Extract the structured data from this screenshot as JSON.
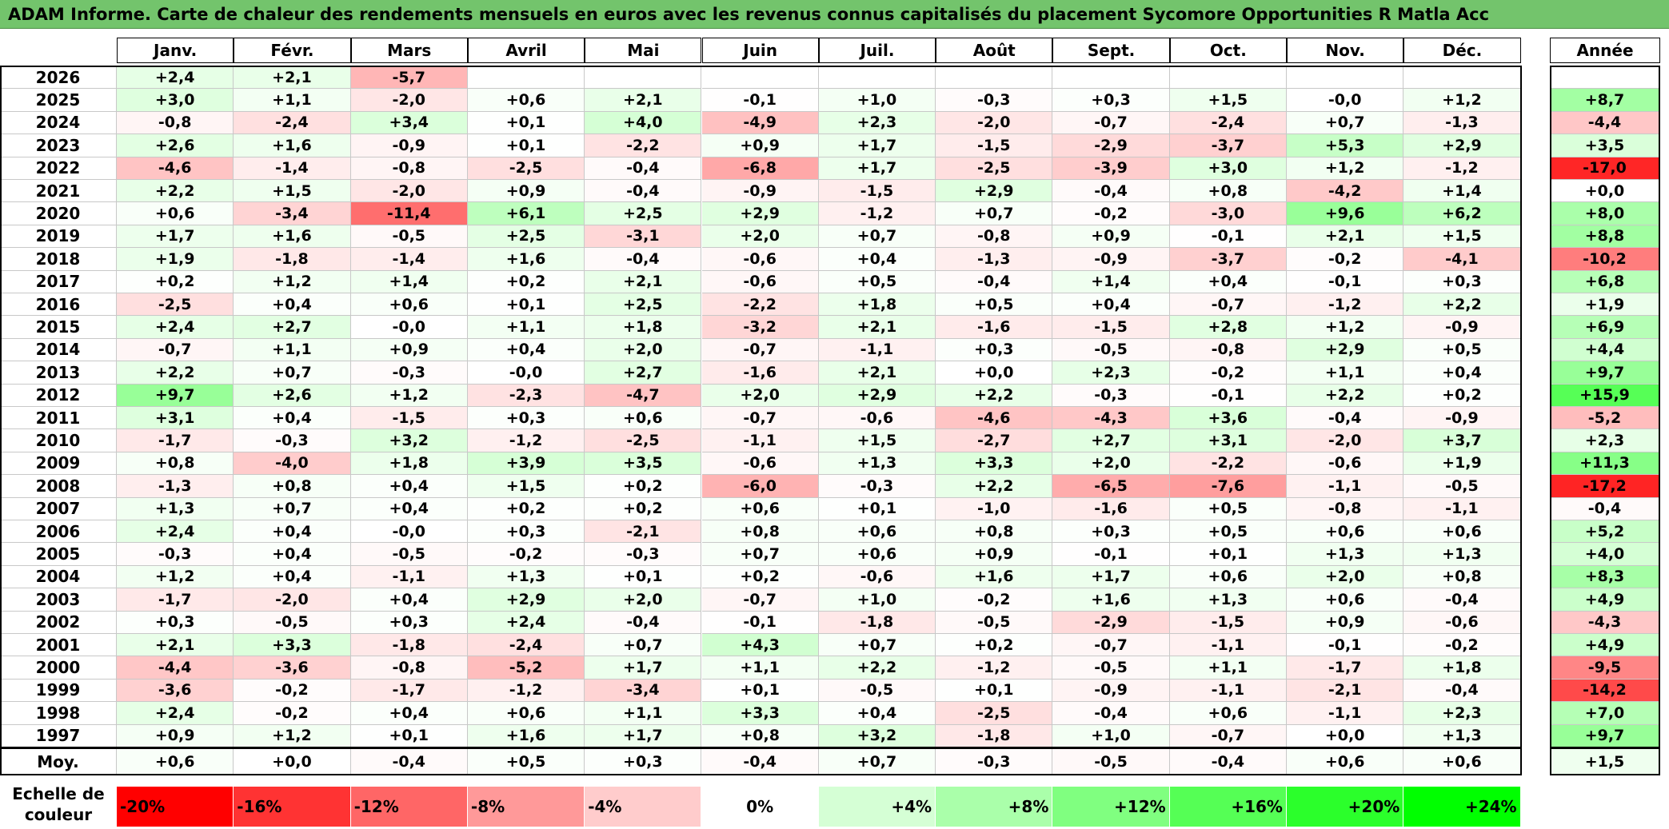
{
  "title": "ADAM Informe. Carte de chaleur des rendements mensuels en euros avec les revenus connus capitalisés du placement Sycomore Opportunities R Matla Acc",
  "chart_data": {
    "type": "heatmap",
    "months": [
      "Janv.",
      "Févr.",
      "Mars",
      "Avril",
      "Mai",
      "Juin",
      "Juil.",
      "Août",
      "Sept.",
      "Oct.",
      "Nov.",
      "Déc."
    ],
    "annual_header": "Année",
    "rows": [
      {
        "year": "2026",
        "values": [
          2.4,
          2.1,
          -5.7,
          null,
          null,
          null,
          null,
          null,
          null,
          null,
          null,
          null
        ],
        "labels": [
          "+2,4",
          "+2,1",
          "-5,7",
          "",
          "",
          "",
          "",
          "",
          "",
          "",
          "",
          ""
        ],
        "annual": null,
        "annual_label": ""
      },
      {
        "year": "2025",
        "values": [
          3.0,
          1.1,
          -2.0,
          0.6,
          2.1,
          -0.1,
          1.0,
          -0.3,
          0.3,
          1.5,
          -0.0,
          1.2
        ],
        "labels": [
          "+3,0",
          "+1,1",
          "-2,0",
          "+0,6",
          "+2,1",
          "-0,1",
          "+1,0",
          "-0,3",
          "+0,3",
          "+1,5",
          "-0,0",
          "+1,2"
        ],
        "annual": 8.7,
        "annual_label": "+8,7"
      },
      {
        "year": "2024",
        "values": [
          -0.8,
          -2.4,
          3.4,
          0.1,
          4.0,
          -4.9,
          2.3,
          -2.0,
          -0.7,
          -2.4,
          0.7,
          -1.3
        ],
        "labels": [
          "-0,8",
          "-2,4",
          "+3,4",
          "+0,1",
          "+4,0",
          "-4,9",
          "+2,3",
          "-2,0",
          "-0,7",
          "-2,4",
          "+0,7",
          "-1,3"
        ],
        "annual": -4.4,
        "annual_label": "-4,4"
      },
      {
        "year": "2023",
        "values": [
          2.6,
          1.6,
          -0.9,
          0.1,
          -2.2,
          0.9,
          1.7,
          -1.5,
          -2.9,
          -3.7,
          5.3,
          2.9
        ],
        "labels": [
          "+2,6",
          "+1,6",
          "-0,9",
          "+0,1",
          "-2,2",
          "+0,9",
          "+1,7",
          "-1,5",
          "-2,9",
          "-3,7",
          "+5,3",
          "+2,9"
        ],
        "annual": 3.5,
        "annual_label": "+3,5"
      },
      {
        "year": "2022",
        "values": [
          -4.6,
          -1.4,
          -0.8,
          -2.5,
          -0.4,
          -6.8,
          1.7,
          -2.5,
          -3.9,
          3.0,
          1.2,
          -1.2
        ],
        "labels": [
          "-4,6",
          "-1,4",
          "-0,8",
          "-2,5",
          "-0,4",
          "-6,8",
          "+1,7",
          "-2,5",
          "-3,9",
          "+3,0",
          "+1,2",
          "-1,2"
        ],
        "annual": -17.0,
        "annual_label": "-17,0"
      },
      {
        "year": "2021",
        "values": [
          2.2,
          1.5,
          -2.0,
          0.9,
          -0.4,
          -0.9,
          -1.5,
          2.9,
          -0.4,
          0.8,
          -4.2,
          1.4
        ],
        "labels": [
          "+2,2",
          "+1,5",
          "-2,0",
          "+0,9",
          "-0,4",
          "-0,9",
          "-1,5",
          "+2,9",
          "-0,4",
          "+0,8",
          "-4,2",
          "+1,4"
        ],
        "annual": 0.0,
        "annual_label": "+0,0"
      },
      {
        "year": "2020",
        "values": [
          0.6,
          -3.4,
          -11.4,
          6.1,
          2.5,
          2.9,
          -1.2,
          0.7,
          -0.2,
          -3.0,
          9.6,
          6.2
        ],
        "labels": [
          "+0,6",
          "-3,4",
          "-11,4",
          "+6,1",
          "+2,5",
          "+2,9",
          "-1,2",
          "+0,7",
          "-0,2",
          "-3,0",
          "+9,6",
          "+6,2"
        ],
        "annual": 8.0,
        "annual_label": "+8,0"
      },
      {
        "year": "2019",
        "values": [
          1.7,
          1.6,
          -0.5,
          2.5,
          -3.1,
          2.0,
          0.7,
          -0.8,
          0.9,
          -0.1,
          2.1,
          1.5
        ],
        "labels": [
          "+1,7",
          "+1,6",
          "-0,5",
          "+2,5",
          "-3,1",
          "+2,0",
          "+0,7",
          "-0,8",
          "+0,9",
          "-0,1",
          "+2,1",
          "+1,5"
        ],
        "annual": 8.8,
        "annual_label": "+8,8"
      },
      {
        "year": "2018",
        "values": [
          1.9,
          -1.8,
          -1.4,
          1.6,
          -0.4,
          -0.6,
          0.4,
          -1.3,
          -0.9,
          -3.7,
          -0.2,
          -4.1
        ],
        "labels": [
          "+1,9",
          "-1,8",
          "-1,4",
          "+1,6",
          "-0,4",
          "-0,6",
          "+0,4",
          "-1,3",
          "-0,9",
          "-3,7",
          "-0,2",
          "-4,1"
        ],
        "annual": -10.2,
        "annual_label": "-10,2"
      },
      {
        "year": "2017",
        "values": [
          0.2,
          1.2,
          1.4,
          0.2,
          2.1,
          -0.6,
          0.5,
          -0.4,
          1.4,
          0.4,
          -0.1,
          0.3
        ],
        "labels": [
          "+0,2",
          "+1,2",
          "+1,4",
          "+0,2",
          "+2,1",
          "-0,6",
          "+0,5",
          "-0,4",
          "+1,4",
          "+0,4",
          "-0,1",
          "+0,3"
        ],
        "annual": 6.8,
        "annual_label": "+6,8"
      },
      {
        "year": "2016",
        "values": [
          -2.5,
          0.4,
          0.6,
          0.1,
          2.5,
          -2.2,
          1.8,
          0.5,
          0.4,
          -0.7,
          -1.2,
          2.2
        ],
        "labels": [
          "-2,5",
          "+0,4",
          "+0,6",
          "+0,1",
          "+2,5",
          "-2,2",
          "+1,8",
          "+0,5",
          "+0,4",
          "-0,7",
          "-1,2",
          "+2,2"
        ],
        "annual": 1.9,
        "annual_label": "+1,9"
      },
      {
        "year": "2015",
        "values": [
          2.4,
          2.7,
          -0.0,
          1.1,
          1.8,
          -3.2,
          2.1,
          -1.6,
          -1.5,
          2.8,
          1.2,
          -0.9
        ],
        "labels": [
          "+2,4",
          "+2,7",
          "-0,0",
          "+1,1",
          "+1,8",
          "-3,2",
          "+2,1",
          "-1,6",
          "-1,5",
          "+2,8",
          "+1,2",
          "-0,9"
        ],
        "annual": 6.9,
        "annual_label": "+6,9"
      },
      {
        "year": "2014",
        "values": [
          -0.7,
          1.1,
          0.9,
          0.4,
          2.0,
          -0.7,
          -1.1,
          0.3,
          -0.5,
          -0.8,
          2.9,
          0.5
        ],
        "labels": [
          "-0,7",
          "+1,1",
          "+0,9",
          "+0,4",
          "+2,0",
          "-0,7",
          "-1,1",
          "+0,3",
          "-0,5",
          "-0,8",
          "+2,9",
          "+0,5"
        ],
        "annual": 4.4,
        "annual_label": "+4,4"
      },
      {
        "year": "2013",
        "values": [
          2.2,
          0.7,
          -0.3,
          -0.0,
          2.7,
          -1.6,
          2.1,
          0.0,
          2.3,
          -0.2,
          1.1,
          0.4
        ],
        "labels": [
          "+2,2",
          "+0,7",
          "-0,3",
          "-0,0",
          "+2,7",
          "-1,6",
          "+2,1",
          "+0,0",
          "+2,3",
          "-0,2",
          "+1,1",
          "+0,4"
        ],
        "annual": 9.7,
        "annual_label": "+9,7"
      },
      {
        "year": "2012",
        "values": [
          9.7,
          2.6,
          1.2,
          -2.3,
          -4.7,
          2.0,
          2.9,
          2.2,
          -0.3,
          -0.1,
          2.2,
          0.2
        ],
        "labels": [
          "+9,7",
          "+2,6",
          "+1,2",
          "-2,3",
          "-4,7",
          "+2,0",
          "+2,9",
          "+2,2",
          "-0,3",
          "-0,1",
          "+2,2",
          "+0,2"
        ],
        "annual": 15.9,
        "annual_label": "+15,9"
      },
      {
        "year": "2011",
        "values": [
          3.1,
          0.4,
          -1.5,
          0.3,
          0.6,
          -0.7,
          -0.6,
          -4.6,
          -4.3,
          3.6,
          -0.4,
          -0.9
        ],
        "labels": [
          "+3,1",
          "+0,4",
          "-1,5",
          "+0,3",
          "+0,6",
          "-0,7",
          "-0,6",
          "-4,6",
          "-4,3",
          "+3,6",
          "-0,4",
          "-0,9"
        ],
        "annual": -5.2,
        "annual_label": "-5,2"
      },
      {
        "year": "2010",
        "values": [
          -1.7,
          -0.3,
          3.2,
          -1.2,
          -2.5,
          -1.1,
          1.5,
          -2.7,
          2.7,
          3.1,
          -2.0,
          3.7
        ],
        "labels": [
          "-1,7",
          "-0,3",
          "+3,2",
          "-1,2",
          "-2,5",
          "-1,1",
          "+1,5",
          "-2,7",
          "+2,7",
          "+3,1",
          "-2,0",
          "+3,7"
        ],
        "annual": 2.3,
        "annual_label": "+2,3"
      },
      {
        "year": "2009",
        "values": [
          0.8,
          -4.0,
          1.8,
          3.9,
          3.5,
          -0.6,
          1.3,
          3.3,
          2.0,
          -2.2,
          -0.6,
          1.9
        ],
        "labels": [
          "+0,8",
          "-4,0",
          "+1,8",
          "+3,9",
          "+3,5",
          "-0,6",
          "+1,3",
          "+3,3",
          "+2,0",
          "-2,2",
          "-0,6",
          "+1,9"
        ],
        "annual": 11.3,
        "annual_label": "+11,3"
      },
      {
        "year": "2008",
        "values": [
          -1.3,
          0.8,
          0.4,
          1.5,
          0.2,
          -6.0,
          -0.3,
          2.2,
          -6.5,
          -7.6,
          -1.1,
          -0.5
        ],
        "labels": [
          "-1,3",
          "+0,8",
          "+0,4",
          "+1,5",
          "+0,2",
          "-6,0",
          "-0,3",
          "+2,2",
          "-6,5",
          "-7,6",
          "-1,1",
          "-0,5"
        ],
        "annual": -17.2,
        "annual_label": "-17,2"
      },
      {
        "year": "2007",
        "values": [
          1.3,
          0.7,
          0.4,
          0.2,
          0.2,
          0.6,
          0.1,
          -1.0,
          -1.6,
          0.5,
          -0.8,
          -1.1
        ],
        "labels": [
          "+1,3",
          "+0,7",
          "+0,4",
          "+0,2",
          "+0,2",
          "+0,6",
          "+0,1",
          "-1,0",
          "-1,6",
          "+0,5",
          "-0,8",
          "-1,1"
        ],
        "annual": -0.4,
        "annual_label": "-0,4"
      },
      {
        "year": "2006",
        "values": [
          2.4,
          0.4,
          -0.0,
          0.3,
          -2.1,
          0.8,
          0.6,
          0.8,
          0.3,
          0.5,
          0.6,
          0.6
        ],
        "labels": [
          "+2,4",
          "+0,4",
          "-0,0",
          "+0,3",
          "-2,1",
          "+0,8",
          "+0,6",
          "+0,8",
          "+0,3",
          "+0,5",
          "+0,6",
          "+0,6"
        ],
        "annual": 5.2,
        "annual_label": "+5,2"
      },
      {
        "year": "2005",
        "values": [
          -0.3,
          0.4,
          -0.5,
          -0.2,
          -0.3,
          0.7,
          0.6,
          0.9,
          -0.1,
          0.1,
          1.3,
          1.3
        ],
        "labels": [
          "-0,3",
          "+0,4",
          "-0,5",
          "-0,2",
          "-0,3",
          "+0,7",
          "+0,6",
          "+0,9",
          "-0,1",
          "+0,1",
          "+1,3",
          "+1,3"
        ],
        "annual": 4.0,
        "annual_label": "+4,0"
      },
      {
        "year": "2004",
        "values": [
          1.2,
          0.4,
          -1.1,
          1.3,
          0.1,
          0.2,
          -0.6,
          1.6,
          1.7,
          0.6,
          2.0,
          0.8
        ],
        "labels": [
          "+1,2",
          "+0,4",
          "-1,1",
          "+1,3",
          "+0,1",
          "+0,2",
          "-0,6",
          "+1,6",
          "+1,7",
          "+0,6",
          "+2,0",
          "+0,8"
        ],
        "annual": 8.3,
        "annual_label": "+8,3"
      },
      {
        "year": "2003",
        "values": [
          -1.7,
          -2.0,
          0.4,
          2.9,
          2.0,
          -0.7,
          1.0,
          -0.2,
          1.6,
          1.3,
          0.6,
          -0.4
        ],
        "labels": [
          "-1,7",
          "-2,0",
          "+0,4",
          "+2,9",
          "+2,0",
          "-0,7",
          "+1,0",
          "-0,2",
          "+1,6",
          "+1,3",
          "+0,6",
          "-0,4"
        ],
        "annual": 4.9,
        "annual_label": "+4,9"
      },
      {
        "year": "2002",
        "values": [
          0.3,
          -0.5,
          0.3,
          2.4,
          -0.4,
          -0.1,
          -1.8,
          -0.5,
          -2.9,
          -1.5,
          0.9,
          -0.6
        ],
        "labels": [
          "+0,3",
          "-0,5",
          "+0,3",
          "+2,4",
          "-0,4",
          "-0,1",
          "-1,8",
          "-0,5",
          "-2,9",
          "-1,5",
          "+0,9",
          "-0,6"
        ],
        "annual": -4.3,
        "annual_label": "-4,3"
      },
      {
        "year": "2001",
        "values": [
          2.1,
          3.3,
          -1.8,
          -2.4,
          0.7,
          4.3,
          0.7,
          0.2,
          -0.7,
          -1.1,
          -0.1,
          -0.2
        ],
        "labels": [
          "+2,1",
          "+3,3",
          "-1,8",
          "-2,4",
          "+0,7",
          "+4,3",
          "+0,7",
          "+0,2",
          "-0,7",
          "-1,1",
          "-0,1",
          "-0,2"
        ],
        "annual": 4.9,
        "annual_label": "+4,9"
      },
      {
        "year": "2000",
        "values": [
          -4.4,
          -3.6,
          -0.8,
          -5.2,
          1.7,
          1.1,
          2.2,
          -1.2,
          -0.5,
          1.1,
          -1.7,
          1.8
        ],
        "labels": [
          "-4,4",
          "-3,6",
          "-0,8",
          "-5,2",
          "+1,7",
          "+1,1",
          "+2,2",
          "-1,2",
          "-0,5",
          "+1,1",
          "-1,7",
          "+1,8"
        ],
        "annual": -9.5,
        "annual_label": "-9,5"
      },
      {
        "year": "1999",
        "values": [
          -3.6,
          -0.2,
          -1.7,
          -1.2,
          -3.4,
          0.1,
          -0.5,
          0.1,
          -0.9,
          -1.1,
          -2.1,
          -0.4
        ],
        "labels": [
          "-3,6",
          "-0,2",
          "-1,7",
          "-1,2",
          "-3,4",
          "+0,1",
          "-0,5",
          "+0,1",
          "-0,9",
          "-1,1",
          "-2,1",
          "-0,4"
        ],
        "annual": -14.2,
        "annual_label": "-14,2"
      },
      {
        "year": "1998",
        "values": [
          2.4,
          -0.2,
          0.4,
          0.6,
          1.1,
          3.3,
          0.4,
          -2.5,
          -0.4,
          0.6,
          -1.1,
          2.3
        ],
        "labels": [
          "+2,4",
          "-0,2",
          "+0,4",
          "+0,6",
          "+1,1",
          "+3,3",
          "+0,4",
          "-2,5",
          "-0,4",
          "+0,6",
          "-1,1",
          "+2,3"
        ],
        "annual": 7.0,
        "annual_label": "+7,0"
      },
      {
        "year": "1997",
        "values": [
          0.9,
          1.2,
          0.1,
          1.6,
          1.7,
          0.8,
          3.2,
          -1.8,
          1.0,
          -0.7,
          0.0,
          1.3
        ],
        "labels": [
          "+0,9",
          "+1,2",
          "+0,1",
          "+1,6",
          "+1,7",
          "+0,8",
          "+3,2",
          "-1,8",
          "+1,0",
          "-0,7",
          "+0,0",
          "+1,3"
        ],
        "annual": 9.7,
        "annual_label": "+9,7"
      }
    ],
    "average": {
      "label": "Moy.",
      "values": [
        0.6,
        0.0,
        -0.4,
        0.5,
        0.3,
        -0.4,
        0.7,
        -0.3,
        -0.5,
        -0.4,
        0.6,
        0.6
      ],
      "labels": [
        "+0,6",
        "+0,0",
        "-0,4",
        "+0,5",
        "+0,3",
        "-0,4",
        "+0,7",
        "-0,3",
        "-0,5",
        "-0,4",
        "+0,6",
        "+0,6"
      ],
      "annual": 1.5,
      "annual_label": "+1,5"
    },
    "color_scale": {
      "label": "Echelle de couleur",
      "stops": [
        {
          "value": -20,
          "label": "-20%"
        },
        {
          "value": -16,
          "label": "-16%"
        },
        {
          "value": -12,
          "label": "-12%"
        },
        {
          "value": -8,
          "label": "-8%"
        },
        {
          "value": -4,
          "label": "-4%"
        },
        {
          "value": 0,
          "label": "0%"
        },
        {
          "value": 4,
          "label": "+4%"
        },
        {
          "value": 8,
          "label": "+8%"
        },
        {
          "value": 12,
          "label": "+12%"
        },
        {
          "value": 16,
          "label": "+16%"
        },
        {
          "value": 20,
          "label": "+20%"
        },
        {
          "value": 24,
          "label": "+24%"
        }
      ]
    },
    "colors": {
      "negative": "#ff0000",
      "neutral": "#ffffff",
      "positive": "#00ff00",
      "title_bg": "#73c46c"
    }
  }
}
